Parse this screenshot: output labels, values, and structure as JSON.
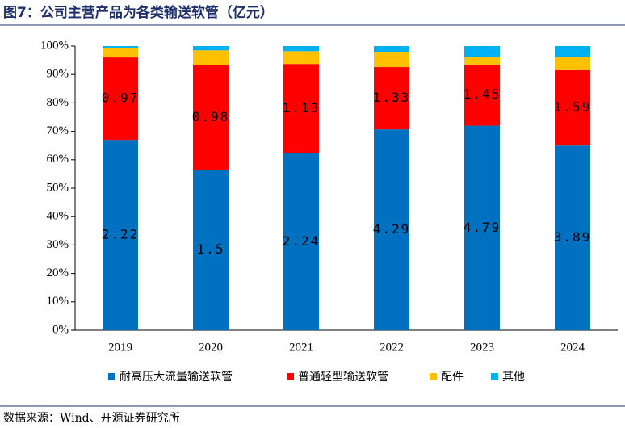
{
  "chart_data": {
    "type": "stacked_bar_percent",
    "title": "图7：公司主营产品为各类输送软管（亿元）",
    "source": "数据来源：Wind、开源证券研究所",
    "categories": [
      "2019",
      "2020",
      "2021",
      "2022",
      "2023",
      "2024"
    ],
    "series": [
      {
        "name": "耐高压大流量输送软管",
        "color": "#0070c0",
        "values": [
          67,
          56.5,
          62.3,
          70.7,
          72,
          65
        ],
        "data_labels": [
          2.22,
          1.5,
          2.24,
          4.29,
          4.79,
          3.89
        ]
      },
      {
        "name": "普通轻型输送软管",
        "color": "#ff0000",
        "values": [
          29,
          36.7,
          31.4,
          21.9,
          21.5,
          26.5
        ],
        "data_labels": [
          0.97,
          0.98,
          1.13,
          1.33,
          1.45,
          1.59
        ]
      },
      {
        "name": "配件",
        "color": "#ffc000",
        "values": [
          3.3,
          5.3,
          4.5,
          5.2,
          2.5,
          4.5
        ]
      },
      {
        "name": "其他",
        "color": "#00b0f0",
        "values": [
          0.7,
          1.5,
          1.8,
          2.2,
          4,
          4
        ]
      }
    ],
    "ylim": [
      0,
      100
    ],
    "yticks": [
      {
        "value": 0,
        "label": "0%"
      },
      {
        "value": 10,
        "label": "10%"
      },
      {
        "value": 20,
        "label": "20%"
      },
      {
        "value": 30,
        "label": "30%"
      },
      {
        "value": 40,
        "label": "40%"
      },
      {
        "value": 50,
        "label": "50%"
      },
      {
        "value": 60,
        "label": "60%"
      },
      {
        "value": 70,
        "label": "70%"
      },
      {
        "value": 80,
        "label": "80%"
      },
      {
        "value": 90,
        "label": "90%"
      },
      {
        "value": 100,
        "label": "100%"
      }
    ],
    "legend": "bottom"
  }
}
